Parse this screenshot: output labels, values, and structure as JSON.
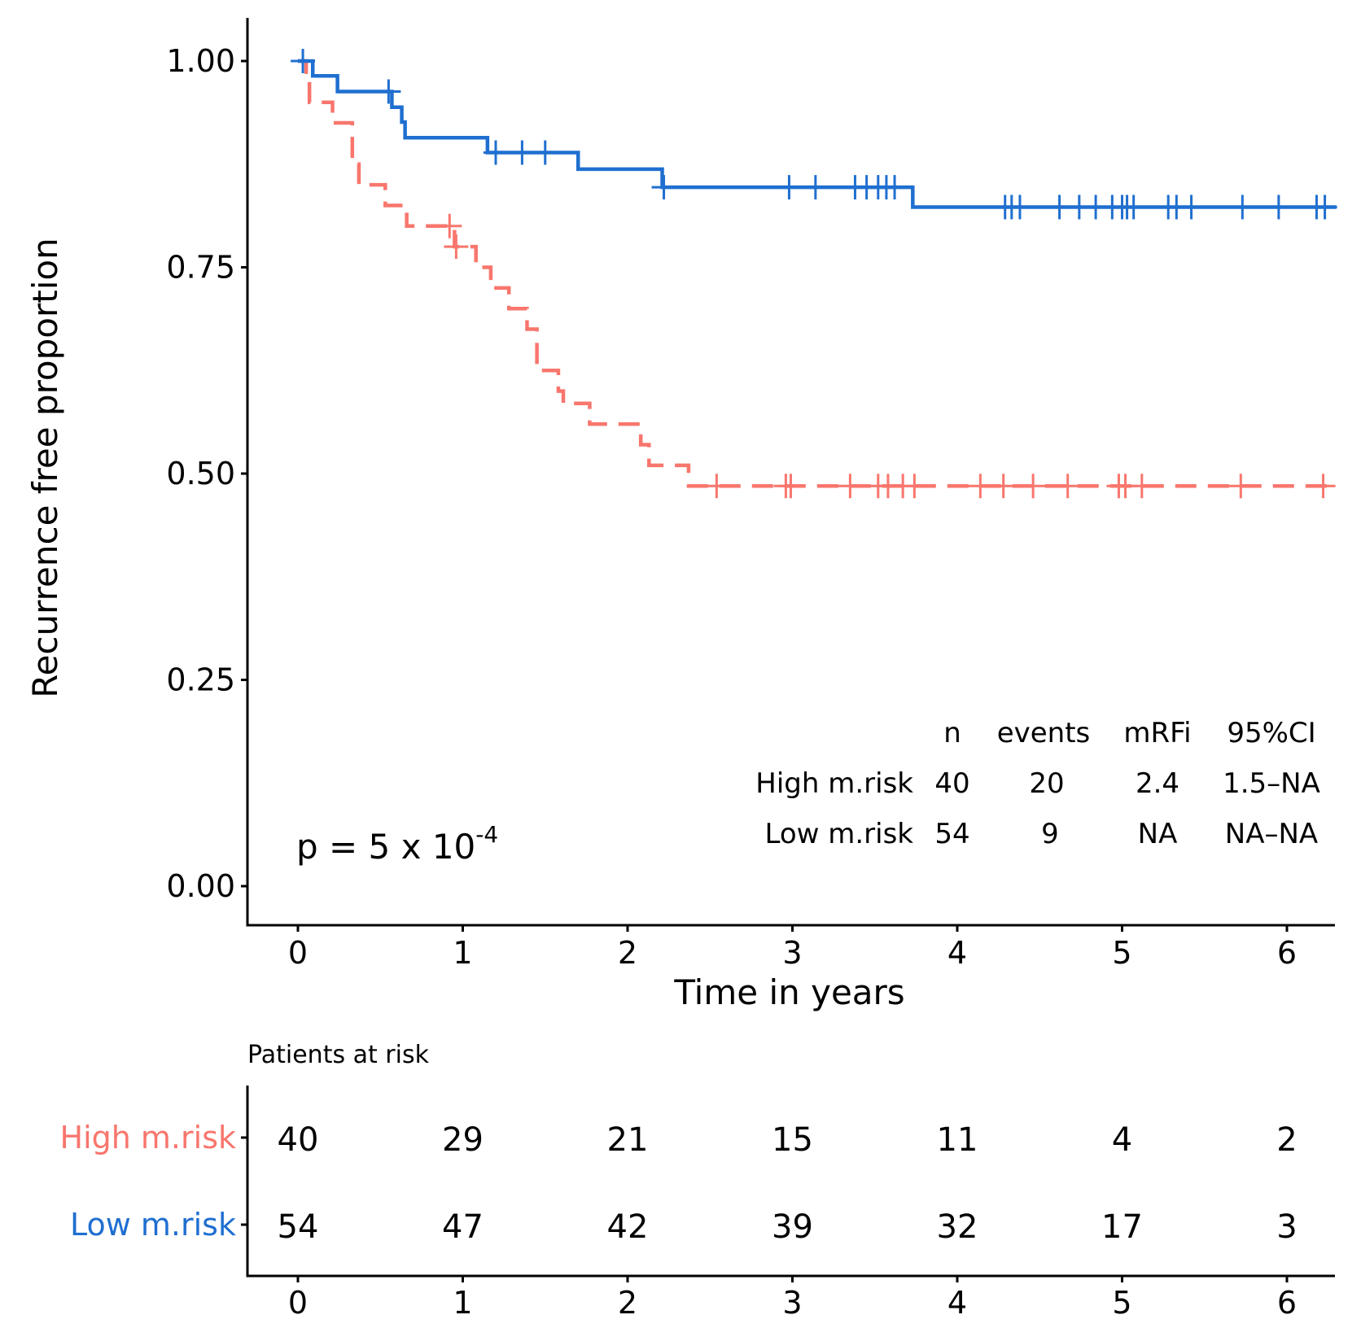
{
  "chart_data": {
    "type": "line",
    "subtype": "kaplan-meier",
    "xlabel": "Time in years",
    "ylabel": "Recurrence free proportion",
    "xlim": [
      -0.3,
      6.3
    ],
    "ylim": [
      -0.05,
      1.05
    ],
    "x_ticks": [
      "0",
      "1",
      "2",
      "3",
      "4",
      "5",
      "6"
    ],
    "y_ticks": [
      "0.00",
      "0.25",
      "0.50",
      "0.75",
      "1.00"
    ],
    "pvalue": {
      "prefix": "p = 5 x 10",
      "exponent": "-4"
    },
    "series": [
      {
        "name": "High m.risk",
        "color": "#F8766D",
        "line_style": "dashed",
        "steps": [
          [
            0.0,
            1.0
          ],
          [
            0.05,
            0.975
          ],
          [
            0.07,
            0.95
          ],
          [
            0.21,
            0.925
          ],
          [
            0.33,
            0.875
          ],
          [
            0.37,
            0.85
          ],
          [
            0.53,
            0.825
          ],
          [
            0.66,
            0.8
          ],
          [
            0.95,
            0.775
          ],
          [
            1.08,
            0.75
          ],
          [
            1.17,
            0.725
          ],
          [
            1.28,
            0.7
          ],
          [
            1.39,
            0.675
          ],
          [
            1.45,
            0.625
          ],
          [
            1.58,
            0.6
          ],
          [
            1.61,
            0.585
          ],
          [
            1.77,
            0.56
          ],
          [
            2.0,
            0.56
          ],
          [
            2.08,
            0.535
          ],
          [
            2.13,
            0.51
          ],
          [
            2.37,
            0.485
          ],
          [
            6.3,
            0.485
          ]
        ],
        "censor_times": [
          0.92,
          0.96,
          2.54,
          2.96,
          2.99,
          3.35,
          3.52,
          3.58,
          3.67,
          3.74,
          4.14,
          4.28,
          4.46,
          4.67,
          4.98,
          5.02,
          5.12,
          5.72,
          6.22
        ]
      },
      {
        "name": "Low m.risk",
        "color": "#1F6FD0",
        "line_style": "solid",
        "steps": [
          [
            0.0,
            1.0
          ],
          [
            0.09,
            0.982
          ],
          [
            0.24,
            0.963
          ],
          [
            0.57,
            0.944
          ],
          [
            0.63,
            0.926
          ],
          [
            0.65,
            0.907
          ],
          [
            1.15,
            0.889
          ],
          [
            1.7,
            0.869
          ],
          [
            2.21,
            0.847
          ],
          [
            3.73,
            0.823
          ],
          [
            6.3,
            0.823
          ]
        ],
        "censor_times": [
          0.03,
          0.55,
          1.2,
          1.36,
          1.5,
          2.22,
          2.98,
          3.14,
          3.38,
          3.45,
          3.52,
          3.57,
          3.62,
          4.29,
          4.33,
          4.38,
          4.62,
          4.74,
          4.84,
          4.94,
          5.0,
          5.03,
          5.07,
          5.28,
          5.33,
          5.42,
          5.73,
          5.95,
          6.18,
          6.23
        ]
      }
    ]
  },
  "summary_table": {
    "headers": [
      "n",
      "events",
      "mRFi",
      "95%CI"
    ],
    "rows": [
      {
        "label": "High m.risk",
        "cells": [
          "40",
          "20",
          "2.4",
          "1.5–NA"
        ]
      },
      {
        "label": "Low m.risk",
        "cells": [
          "54",
          "9",
          "NA",
          "NA–NA"
        ]
      }
    ]
  },
  "risk_table": {
    "title": "Patients at risk",
    "times": [
      "0",
      "1",
      "2",
      "3",
      "4",
      "5",
      "6"
    ],
    "rows": [
      {
        "label": "High m.risk",
        "color": "#F8766D",
        "values": [
          "40",
          "29",
          "21",
          "15",
          "11",
          "4",
          "2"
        ]
      },
      {
        "label": "Low m.risk",
        "color": "#1F6FD0",
        "values": [
          "54",
          "47",
          "42",
          "39",
          "32",
          "17",
          "3"
        ]
      }
    ]
  }
}
